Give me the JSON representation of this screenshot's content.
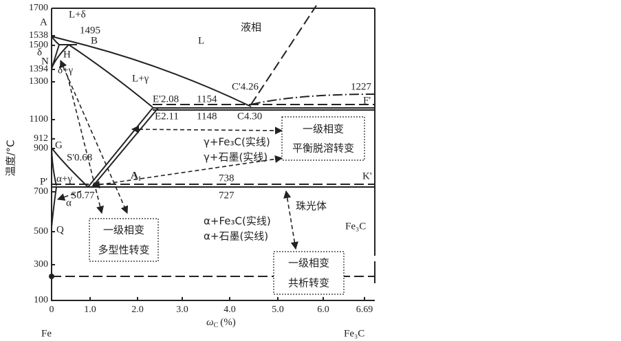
{
  "axes": {
    "y_label": "温度/°C",
    "y_ticks": [
      "1700",
      "1538",
      "1500",
      "1394",
      "1300",
      "1100",
      "912",
      "900",
      "700",
      "500",
      "300",
      "100"
    ],
    "x_ticks": [
      "0",
      "1.0",
      "2.0",
      "3.0",
      "4.0",
      "5.0",
      "6.0",
      "6.69"
    ],
    "x_label": {
      "symbol": "ω",
      "subscript": "C",
      "unit": "(%)"
    },
    "x_left": "Fe",
    "x_right": "Fe₃C"
  },
  "points": [
    "A",
    "δ",
    "N",
    "H",
    "B",
    "1495",
    "G",
    "P'",
    "Q",
    "C'4.26",
    "1227",
    "E'2.08",
    "1154",
    "F'",
    "E2.11",
    "1148",
    "C4.30",
    "S'0.68",
    "A₁",
    "738",
    "K'",
    "S0.77",
    "727"
  ],
  "regions": [
    "L+δ",
    "液相",
    "L",
    "δ+γ",
    "L+γ",
    "γ+Fe₃C(实线)",
    "γ+石墨(实线)",
    "α+γ",
    "α",
    "珠光体",
    "α+Fe₃C(实线)",
    "α+石墨(实线)",
    "Fe₃C"
  ],
  "boxes": [
    [
      "一级相变",
      "多型性转变"
    ],
    [
      "一级相变",
      "平衡脱溶转变"
    ],
    [
      "一级相变",
      "共析转变"
    ]
  ]
}
